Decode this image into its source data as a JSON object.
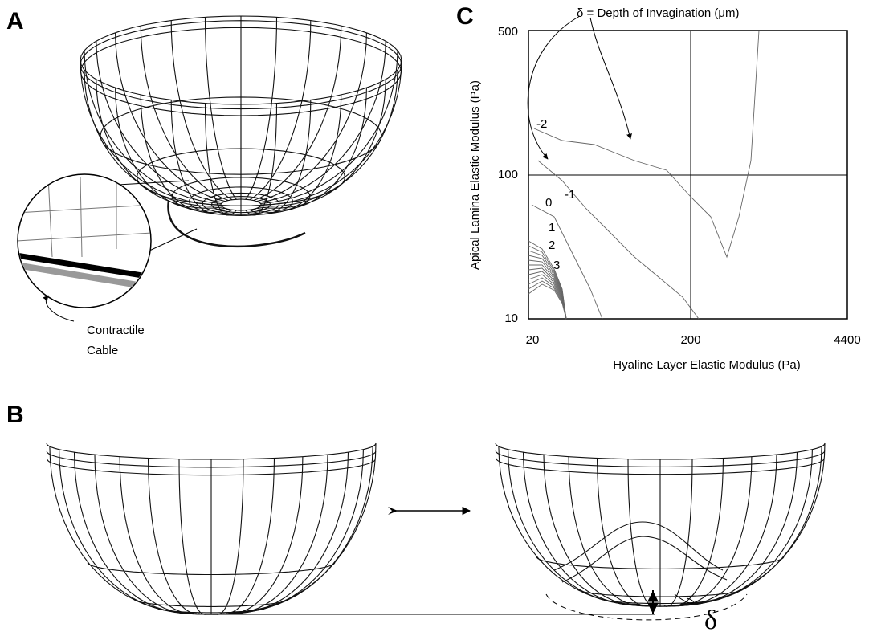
{
  "panels": {
    "a": {
      "label": "A",
      "callout": [
        "Contractile",
        "Cable"
      ]
    },
    "b": {
      "label": "B",
      "delta": "δ"
    },
    "c": {
      "label": "C",
      "annotation": "δ = Depth of Invagination (μm)",
      "x_axis": {
        "title": "Hyaline Layer Elastic Modulus (Pa)",
        "ticks": [
          "20",
          "200",
          "4400"
        ]
      },
      "y_axis": {
        "title": "Apical Lamina Elastic Modulus (Pa)",
        "ticks": [
          "500",
          "100",
          "10"
        ]
      },
      "contour_labels": [
        "-2",
        "-1",
        "0",
        "1",
        "2",
        "3"
      ]
    }
  }
}
